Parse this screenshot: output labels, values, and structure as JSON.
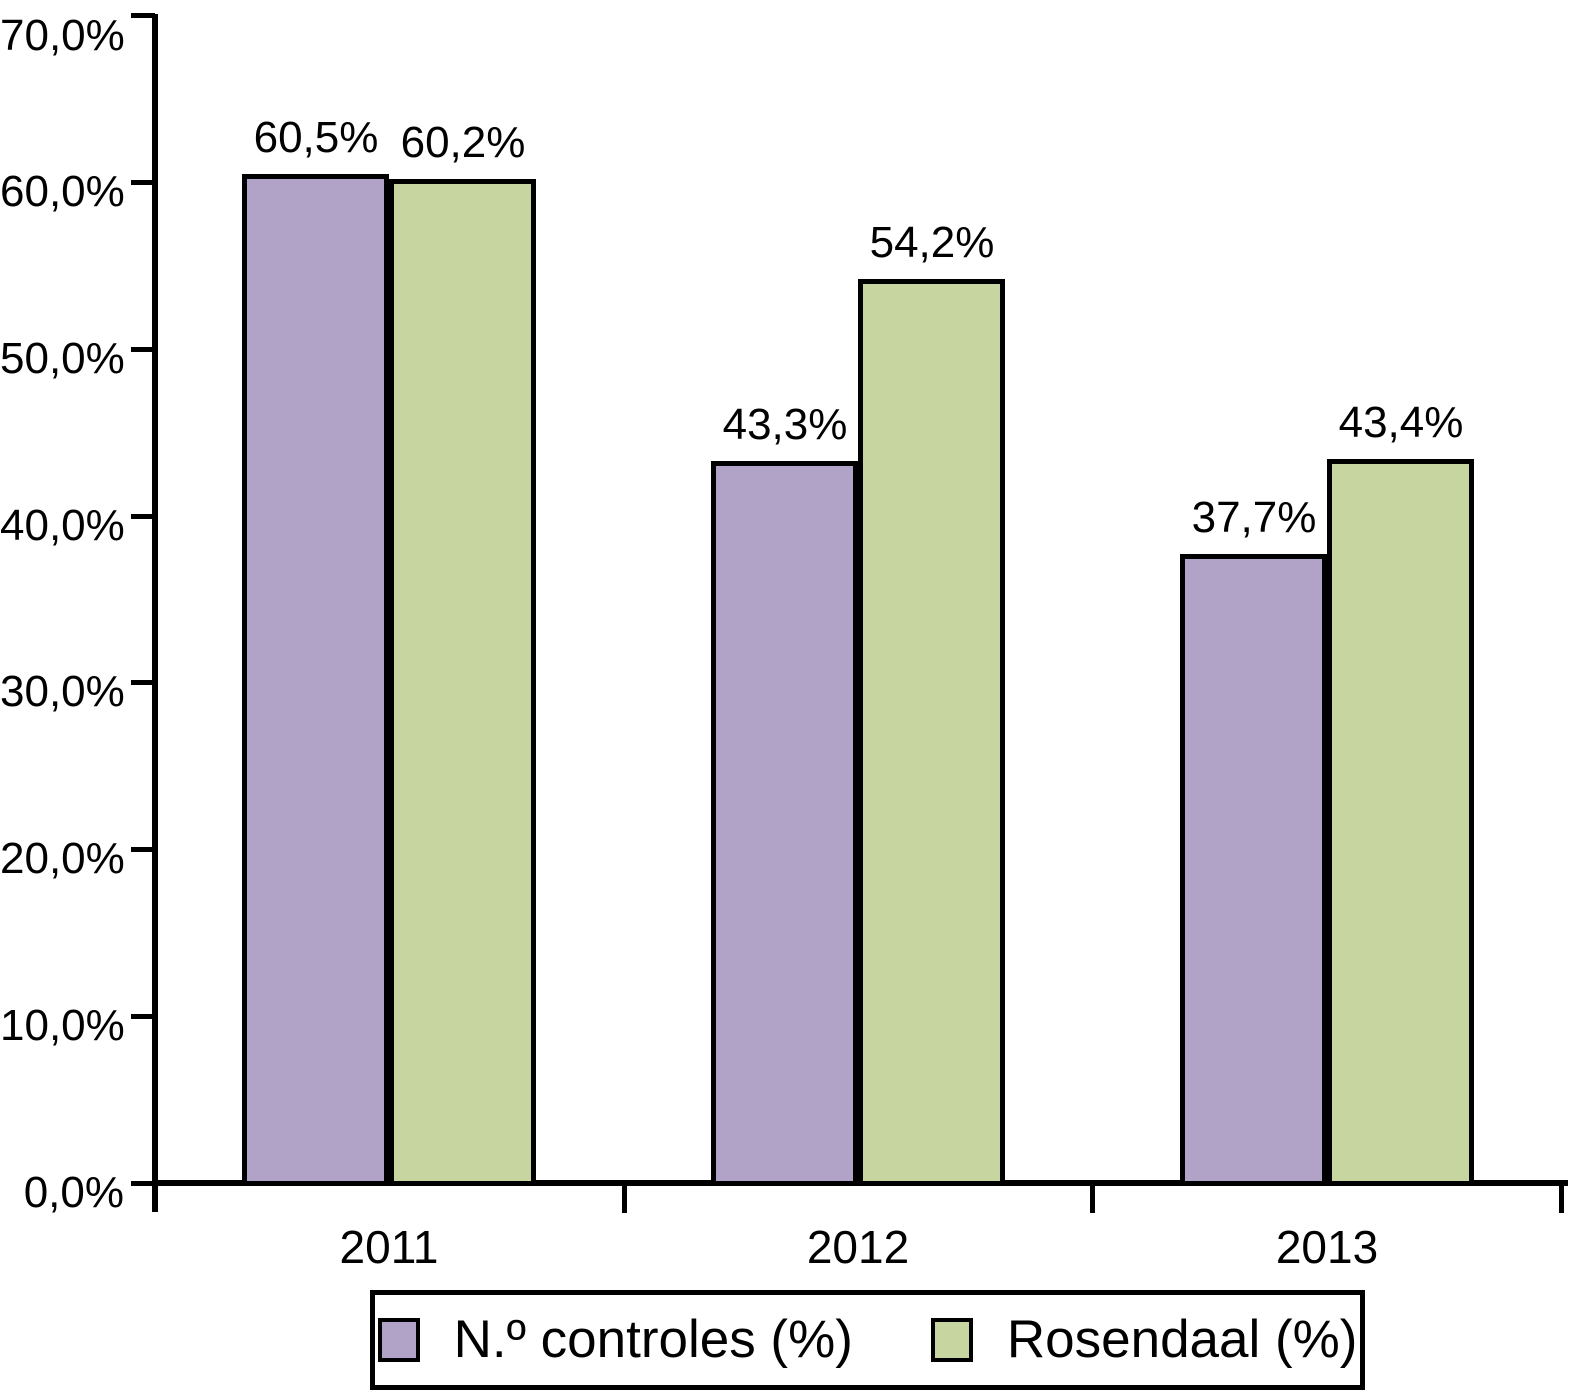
{
  "chart_data": {
    "type": "bar",
    "title": "",
    "xlabel": "",
    "ylabel": "",
    "categories": [
      "2011",
      "2012",
      "2013"
    ],
    "series": [
      {
        "name": "N.º controles (%)",
        "color": "#b1a3c8",
        "values": [
          60.5,
          43.3,
          37.7
        ],
        "labels": [
          "60,5%",
          "43,3%",
          "37,7%"
        ]
      },
      {
        "name": "Rosendaal (%)",
        "color": "#c7d6a0",
        "values": [
          60.2,
          54.2,
          43.4
        ],
        "labels": [
          "60,2%",
          "54,2%",
          "43,4%"
        ]
      }
    ],
    "y_axis": {
      "min": 0,
      "max": 70,
      "tick_values": [
        0,
        10,
        20,
        30,
        40,
        50,
        60,
        70
      ],
      "tick_labels": [
        "0,0%",
        "10,0%",
        "20,0%",
        "30,0%",
        "40,0%",
        "50,0%",
        "60,0%",
        "70,0%"
      ]
    },
    "grid": false,
    "legend_position": "bottom",
    "bar_border_color": "#000000",
    "background_color": "#ffffff"
  }
}
